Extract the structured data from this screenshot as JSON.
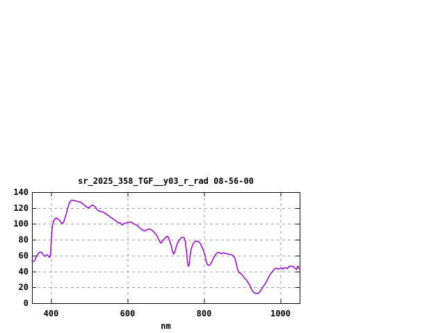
{
  "title": "sr_2025_358_TGF__y03_r_rad 08-56-00",
  "colors": {
    "background": "#ffffff",
    "line": "#9400d3",
    "grid": "#a0a0a0",
    "border": "#000000",
    "text": "#000000"
  },
  "chart_data": {
    "type": "line",
    "title": "sr_2025_358_TGF__y03_r_rad 08-56-00",
    "xlabel": "nm",
    "ylabel": "",
    "xlim": [
      350,
      1050
    ],
    "ylim": [
      0,
      140
    ],
    "x_ticks": [
      400,
      600,
      800,
      1000
    ],
    "y_ticks": [
      0,
      20,
      40,
      60,
      80,
      100,
      120,
      140
    ],
    "grid": true,
    "legend": "none",
    "series": [
      {
        "name": "sr_2025_358_TGF__y03_r_rad",
        "color": "#9400d3",
        "points": [
          [
            350,
            53.5
          ],
          [
            353,
            52.6
          ],
          [
            356,
            53.2
          ],
          [
            360,
            56.9
          ],
          [
            364,
            61.3
          ],
          [
            368,
            63.6
          ],
          [
            372,
            64.5
          ],
          [
            375,
            64.2
          ],
          [
            378,
            62.1
          ],
          [
            381,
            60.1
          ],
          [
            384,
            59
          ],
          [
            387,
            60.4
          ],
          [
            390,
            61
          ],
          [
            393,
            59.2
          ],
          [
            396,
            57.8
          ],
          [
            398,
            60
          ],
          [
            399,
            66
          ],
          [
            400,
            75
          ],
          [
            401,
            84
          ],
          [
            402,
            91
          ],
          [
            404,
            99
          ],
          [
            406,
            103
          ],
          [
            408,
            105
          ],
          [
            410,
            106.2
          ],
          [
            413,
            107.4
          ],
          [
            416,
            107
          ],
          [
            419,
            105.6
          ],
          [
            422,
            104.5
          ],
          [
            425,
            102.6
          ],
          [
            428,
            100.4
          ],
          [
            431,
            100.9
          ],
          [
            434,
            104
          ],
          [
            437,
            108.5
          ],
          [
            440,
            113.5
          ],
          [
            443,
            119
          ],
          [
            446,
            124
          ],
          [
            449,
            127.5
          ],
          [
            452,
            129.3
          ],
          [
            455,
            130
          ],
          [
            458,
            129.6
          ],
          [
            461,
            129.4
          ],
          [
            464,
            129
          ],
          [
            467,
            128.6
          ],
          [
            470,
            128.1
          ],
          [
            474,
            127.6
          ],
          [
            478,
            127
          ],
          [
            482,
            125.6
          ],
          [
            486,
            124
          ],
          [
            490,
            122.4
          ],
          [
            494,
            121
          ],
          [
            497,
            120.1
          ],
          [
            500,
            120.6
          ],
          [
            503,
            122
          ],
          [
            506,
            123.4
          ],
          [
            509,
            123.5
          ],
          [
            512,
            122.9
          ],
          [
            515,
            121.5
          ],
          [
            518,
            119.6
          ],
          [
            521,
            117.6
          ],
          [
            524,
            116.6
          ],
          [
            527,
            116.1
          ],
          [
            530,
            115.6
          ],
          [
            534,
            115.1
          ],
          [
            538,
            114.5
          ],
          [
            542,
            113.1
          ],
          [
            546,
            111.6
          ],
          [
            550,
            110.5
          ],
          [
            554,
            109
          ],
          [
            558,
            107.5
          ],
          [
            562,
            106.4
          ],
          [
            566,
            105
          ],
          [
            570,
            103.5
          ],
          [
            574,
            102
          ],
          [
            577,
            100.9
          ],
          [
            580,
            101.6
          ],
          [
            583,
            100
          ],
          [
            586,
            98.6
          ],
          [
            589,
            99.9
          ],
          [
            592,
            100.9
          ],
          [
            596,
            101.2
          ],
          [
            600,
            101.5
          ],
          [
            604,
            102
          ],
          [
            608,
            102.4
          ],
          [
            612,
            101.6
          ],
          [
            616,
            100.1
          ],
          [
            620,
            99.2
          ],
          [
            624,
            98.7
          ],
          [
            628,
            96.6
          ],
          [
            632,
            94.6
          ],
          [
            636,
            93.5
          ],
          [
            640,
            92
          ],
          [
            644,
            91.1
          ],
          [
            648,
            91.9
          ],
          [
            652,
            93.1
          ],
          [
            656,
            93.6
          ],
          [
            660,
            93
          ],
          [
            664,
            92
          ],
          [
            668,
            90.1
          ],
          [
            672,
            88
          ],
          [
            676,
            85.4
          ],
          [
            680,
            81.5
          ],
          [
            684,
            77.6
          ],
          [
            687,
            75.6
          ],
          [
            690,
            77.4
          ],
          [
            694,
            80
          ],
          [
            698,
            82.1
          ],
          [
            702,
            84
          ],
          [
            705,
            84.4
          ],
          [
            708,
            81
          ],
          [
            711,
            77
          ],
          [
            714,
            72.9
          ],
          [
            717,
            66.1
          ],
          [
            720,
            61.9
          ],
          [
            723,
            64
          ],
          [
            726,
            69.1
          ],
          [
            729,
            74
          ],
          [
            732,
            77
          ],
          [
            736,
            80
          ],
          [
            740,
            82.5
          ],
          [
            744,
            83.1
          ],
          [
            748,
            82.5
          ],
          [
            751,
            78
          ],
          [
            754,
            65
          ],
          [
            757,
            50
          ],
          [
            759,
            46.4
          ],
          [
            761,
            49.1
          ],
          [
            763,
            57.9
          ],
          [
            766,
            67.9
          ],
          [
            769,
            72
          ],
          [
            772,
            75.4
          ],
          [
            776,
            77.5
          ],
          [
            780,
            78.2
          ],
          [
            784,
            78
          ],
          [
            788,
            76.5
          ],
          [
            791,
            74.7
          ],
          [
            794,
            71
          ],
          [
            797,
            67.9
          ],
          [
            800,
            64.4
          ],
          [
            803,
            58
          ],
          [
            806,
            52
          ],
          [
            809,
            48.5
          ],
          [
            812,
            47.6
          ],
          [
            815,
            48.1
          ],
          [
            818,
            50.1
          ],
          [
            822,
            54
          ],
          [
            826,
            58.1
          ],
          [
            830,
            61
          ],
          [
            833,
            63
          ],
          [
            837,
            64.1
          ],
          [
            841,
            63.5
          ],
          [
            845,
            62.4
          ],
          [
            848,
            63.1
          ],
          [
            851,
            63.6
          ],
          [
            855,
            62.7
          ],
          [
            860,
            62.3
          ],
          [
            864,
            61.9
          ],
          [
            868,
            61.3
          ],
          [
            872,
            61
          ],
          [
            875,
            60.1
          ],
          [
            878,
            58.8
          ],
          [
            881,
            55.9
          ],
          [
            884,
            50.1
          ],
          [
            887,
            44
          ],
          [
            890,
            39.1
          ],
          [
            893,
            38.4
          ],
          [
            896,
            37.4
          ],
          [
            899,
            36
          ],
          [
            903,
            33.5
          ],
          [
            907,
            31
          ],
          [
            911,
            29
          ],
          [
            915,
            26
          ],
          [
            919,
            23
          ],
          [
            923,
            18.5
          ],
          [
            927,
            15
          ],
          [
            930,
            13.4
          ],
          [
            934,
            12.4
          ],
          [
            938,
            12
          ],
          [
            942,
            12.6
          ],
          [
            946,
            14.5
          ],
          [
            950,
            17.5
          ],
          [
            954,
            20.6
          ],
          [
            958,
            23.1
          ],
          [
            962,
            26.6
          ],
          [
            966,
            30
          ],
          [
            970,
            34
          ],
          [
            974,
            37.1
          ],
          [
            978,
            39.5
          ],
          [
            982,
            41.9
          ],
          [
            986,
            43.7
          ],
          [
            990,
            44.2
          ],
          [
            994,
            42.9
          ],
          [
            998,
            43.5
          ],
          [
            1002,
            44.6
          ],
          [
            1006,
            43.1
          ],
          [
            1010,
            44.5
          ],
          [
            1014,
            44.7
          ],
          [
            1018,
            43.5
          ],
          [
            1022,
            46.4
          ],
          [
            1026,
            46.7
          ],
          [
            1030,
            46.4
          ],
          [
            1034,
            45.9
          ],
          [
            1038,
            44
          ],
          [
            1042,
            42.4
          ],
          [
            1045,
            47
          ],
          [
            1048,
            44.1
          ],
          [
            1050,
            43.6
          ]
        ]
      }
    ]
  }
}
